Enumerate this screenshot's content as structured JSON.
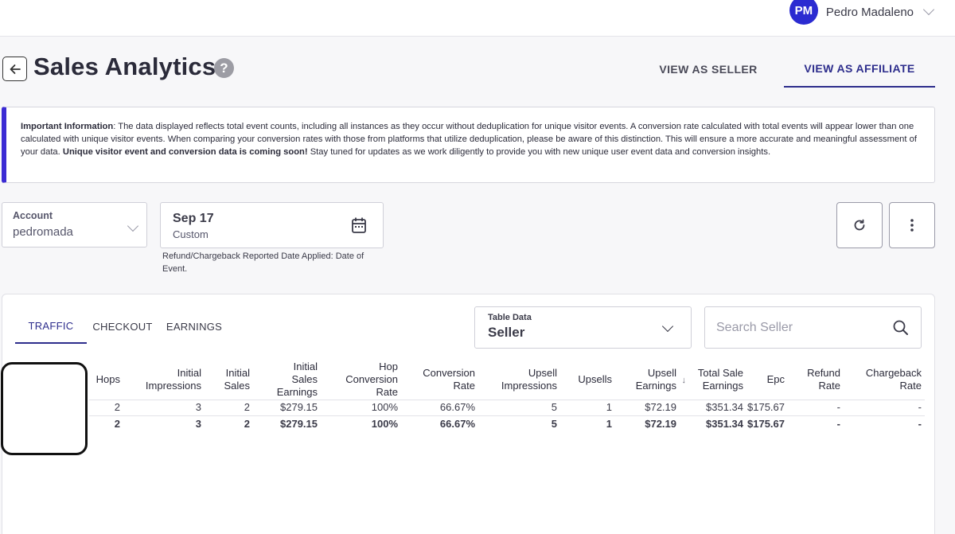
{
  "user": {
    "initials": "PM",
    "name": "Pedro Madaleno"
  },
  "page": {
    "title": "Sales Analytics",
    "help_glyph": "?"
  },
  "view_tabs": {
    "seller": "VIEW AS SELLER",
    "affiliate": "VIEW AS AFFILIATE",
    "active": "affiliate"
  },
  "info": {
    "lead": "Important Information",
    "text1": ": The data displayed reflects total event counts, including all instances as they occur without deduplication for unique visitor events. A conversion rate calculated with total events will appear lower than one calculated with unique visitor events. When comparing your conversion rates with those from platforms that utilize deduplication, please be aware of this distinction. This will ensure a more accurate and meaningful assessment of your data. ",
    "emphasis": "Unique visitor event and conversion data is coming soon!",
    "text2": " Stay tuned for updates as we work diligently to provide you with new unique user event data and conversion insights."
  },
  "filters": {
    "account_label": "Account",
    "account_value": "pedromada",
    "date_main": "Sep 17",
    "date_sub": "Custom",
    "date_note": "Refund/Chargeback Reported Date Applied: Date of Event."
  },
  "data_tabs": {
    "traffic": "TRAFFIC",
    "checkout": "CHECKOUT",
    "earnings": "EARNINGS",
    "active": "traffic"
  },
  "table_select": {
    "label": "Table Data",
    "value": "Seller"
  },
  "search": {
    "placeholder": "Search Seller"
  },
  "table": {
    "headers": {
      "hops": [
        "Hops"
      ],
      "initial_impressions": [
        "Initial",
        "Impressions"
      ],
      "initial_sales": [
        "Initial",
        "Sales"
      ],
      "initial_sales_earnings": [
        "Initial",
        "Sales",
        "Earnings"
      ],
      "hop_conversion_rate": [
        "Hop",
        "Conversion",
        "Rate"
      ],
      "conversion_rate": [
        "Conversion",
        "Rate"
      ],
      "upsell_impressions": [
        "Upsell",
        "Impressions"
      ],
      "upsells": [
        "Upsells"
      ],
      "upsell_earnings": [
        "Upsell",
        "Earnings"
      ],
      "total_sale_earnings": [
        "Total Sale",
        "Earnings"
      ],
      "epc": [
        "Epc"
      ],
      "refund_rate": [
        "Refund",
        "Rate"
      ],
      "chargeback_rate": [
        "Chargeback",
        "Rate"
      ]
    },
    "rows": [
      {
        "hops": "2",
        "initial_impressions": "3",
        "initial_sales": "2",
        "initial_sales_earnings": "$279.15",
        "hop_conversion_rate": "100%",
        "conversion_rate": "66.67%",
        "upsell_impressions": "5",
        "upsells": "1",
        "upsell_earnings": "$72.19",
        "total_sale_earnings": "$351.34",
        "epc": "$175.67",
        "refund_rate": "-",
        "chargeback_rate": "-"
      }
    ],
    "totals": {
      "hops": "2",
      "initial_impressions": "3",
      "initial_sales": "2",
      "initial_sales_earnings": "$279.15",
      "hop_conversion_rate": "100%",
      "conversion_rate": "66.67%",
      "upsell_impressions": "5",
      "upsells": "1",
      "upsell_earnings": "$72.19",
      "total_sale_earnings": "$351.34",
      "epc": "$175.67",
      "refund_rate": "-",
      "chargeback_rate": "-"
    }
  },
  "colors": {
    "accent": "#2d2d8c",
    "avatar": "#2b2bd1",
    "info_border": "#3b2bd4"
  }
}
